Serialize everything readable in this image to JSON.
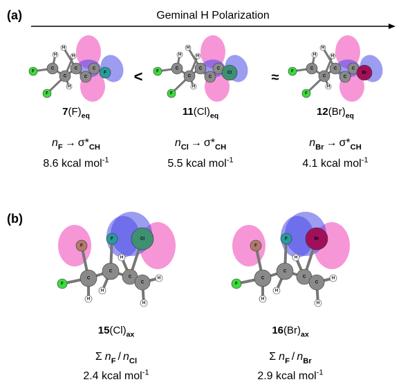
{
  "panel_a": {
    "label": "(a)",
    "arrow_title": "Geminal H Polarization",
    "comparators": [
      "<",
      "≈"
    ],
    "molecules": [
      {
        "number": "7",
        "group": "(F)",
        "subscript": "eq",
        "donor": "n",
        "donor_sub": "F",
        "arrow": "→",
        "acceptor": "σ*",
        "acceptor_sub": "CH",
        "energy": "8.6 kcal mol",
        "energy_sup": "-1",
        "atoms": [
          "F",
          "F",
          "C",
          "C",
          "C",
          "C",
          "C",
          "H",
          "H",
          "H",
          "H",
          "F"
        ]
      },
      {
        "number": "11",
        "group": "(Cl)",
        "subscript": "eq",
        "donor": "n",
        "donor_sub": "Cl",
        "arrow": "→",
        "acceptor": "σ*",
        "acceptor_sub": "CH",
        "energy": "5.5 kcal mol",
        "energy_sup": "-1",
        "atoms": [
          "F",
          "F",
          "C",
          "C",
          "C",
          "C",
          "C",
          "H",
          "H",
          "H",
          "H",
          "Cl"
        ]
      },
      {
        "number": "12",
        "group": "(Br)",
        "subscript": "eq",
        "donor": "n",
        "donor_sub": "Br",
        "arrow": "→",
        "acceptor": "σ*",
        "acceptor_sub": "CH",
        "energy": "4.1 kcal mol",
        "energy_sup": "-1",
        "atoms": [
          "F",
          "F",
          "C",
          "C",
          "C",
          "C",
          "C",
          "H",
          "H",
          "H",
          "H",
          "Br"
        ]
      }
    ]
  },
  "panel_b": {
    "label": "(b)",
    "molecules": [
      {
        "number": "15",
        "group": "(Cl)",
        "subscript": "ax",
        "sum": "Σ",
        "donor": "n",
        "donor_sub": "F",
        "slash": "/",
        "donor2": "n",
        "donor2_sub": "Cl",
        "energy": "2.4 kcal mol",
        "energy_sup": "-1",
        "atoms": [
          "F",
          "F",
          "Cl",
          "F",
          "C",
          "C",
          "C",
          "C",
          "H",
          "H",
          "H",
          "H",
          "H"
        ]
      },
      {
        "number": "16",
        "group": "(Br)",
        "subscript": "ax",
        "sum": "Σ",
        "donor": "n",
        "donor_sub": "F",
        "slash": "/",
        "donor2": "n",
        "donor2_sub": "Br",
        "energy": "2.9 kcal mol",
        "energy_sup": "-1",
        "atoms": [
          "F",
          "F",
          "Br",
          "F",
          "C",
          "C",
          "C",
          "C",
          "H",
          "H",
          "H",
          "H",
          "H"
        ]
      }
    ]
  }
}
